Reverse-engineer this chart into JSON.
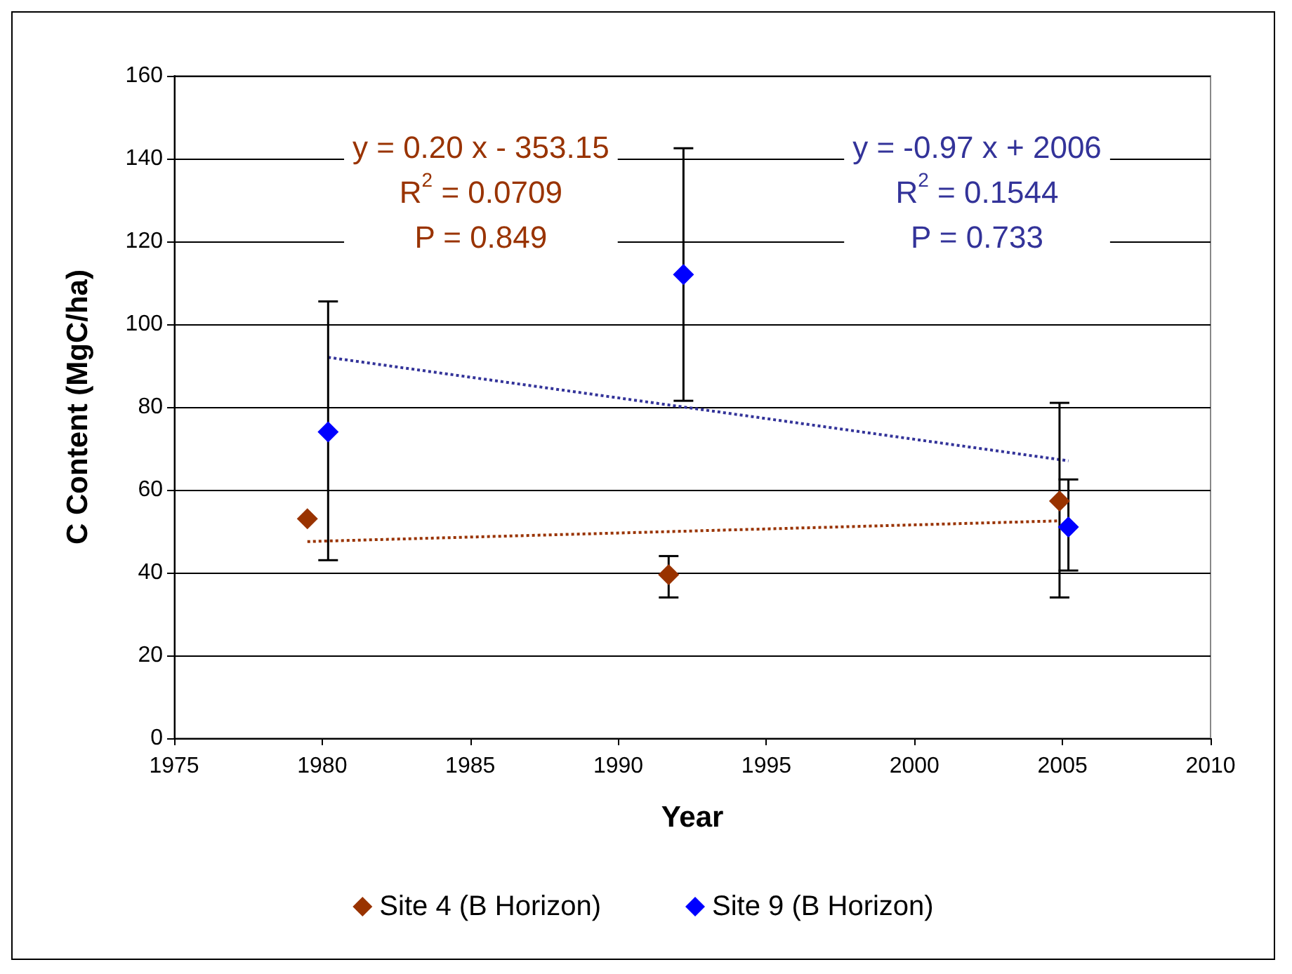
{
  "chart_data": {
    "type": "scatter",
    "xlabel": "Year",
    "ylabel": "C Content (MgC/ha)",
    "xlim": [
      1975,
      2010
    ],
    "xticks": [
      1975,
      1980,
      1985,
      1990,
      1995,
      2000,
      2005,
      2010
    ],
    "ylim": [
      0,
      160
    ],
    "yticks": [
      0,
      20,
      40,
      60,
      80,
      100,
      120,
      140,
      160
    ],
    "grid": "y",
    "legend": "bottom",
    "marker": "diamond",
    "annotations": [
      "y = 0.20 x - 353.15\nR$^{2}$ = 0.0709\nP = 0.849",
      "y = -0.97 x + 2006\nR$^{2}$ = 0.1544\nP = 0.733"
    ],
    "series": [
      {
        "name": "Site 4 (B Horizon)",
        "color": "#993300",
        "x": [
          1979.5,
          1991.7,
          2004.9
        ],
        "values": [
          53,
          39.5,
          57.3
        ],
        "errors": [
          null,
          [
            34,
            44
          ],
          [
            34,
            81
          ]
        ]
      },
      {
        "name": "Site 9 (B Horizon)",
        "color": "#0000ff",
        "x": [
          1980.2,
          1992.2,
          2005.2
        ],
        "values": [
          74,
          112,
          51
        ],
        "errors": [
          [
            43,
            105.5
          ],
          [
            81.5,
            142.5
          ],
          [
            40.5,
            62.5
          ]
        ]
      },
      {
        "type": "line",
        "color": "#993300",
        "line_style": "dotted",
        "marker": "none",
        "x": [
          1979.5,
          2004.9
        ],
        "values": [
          47.5,
          52.5
        ]
      },
      {
        "type": "line",
        "color": "#333399",
        "line_style": "dotted",
        "marker": "none",
        "x": [
          1980.2,
          2005.2
        ],
        "values": [
          92,
          67
        ]
      }
    ]
  }
}
